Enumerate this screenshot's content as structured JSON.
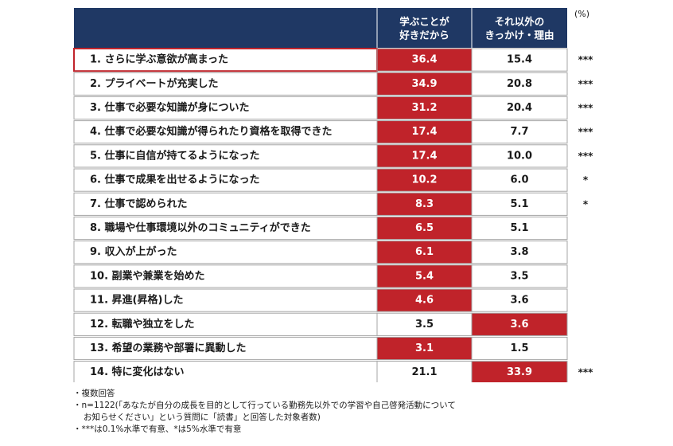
{
  "chart_data": {
    "type": "table",
    "unit_label": "(%)",
    "columns": [
      "学ぶことが\n好きだから",
      "それ以外の\nきっかけ・理由"
    ],
    "rows": [
      {
        "label": "1. さらに学ぶ意欲が高まった",
        "values": [
          36.4,
          15.4
        ],
        "highlight": 0,
        "sig": "***",
        "selected": true
      },
      {
        "label": "2. プライベートが充実した",
        "values": [
          34.9,
          20.8
        ],
        "highlight": 0,
        "sig": "***"
      },
      {
        "label": "3. 仕事で必要な知識が身についた",
        "values": [
          31.2,
          20.4
        ],
        "highlight": 0,
        "sig": "***"
      },
      {
        "label": "4. 仕事で必要な知識が得られたり資格を取得できた",
        "values": [
          17.4,
          7.7
        ],
        "highlight": 0,
        "sig": "***"
      },
      {
        "label": "5. 仕事に自信が持てるようになった",
        "values": [
          17.4,
          10.0
        ],
        "highlight": 0,
        "sig": "***"
      },
      {
        "label": "6. 仕事で成果を出せるようになった",
        "values": [
          10.2,
          6.0
        ],
        "highlight": 0,
        "sig": "*"
      },
      {
        "label": "7. 仕事で認められた",
        "values": [
          8.3,
          5.1
        ],
        "highlight": 0,
        "sig": "*"
      },
      {
        "label": "8. 職場や仕事環境以外のコミュニティができた",
        "values": [
          6.5,
          5.1
        ],
        "highlight": 0,
        "sig": ""
      },
      {
        "label": "9. 収入が上がった",
        "values": [
          6.1,
          3.8
        ],
        "highlight": 0,
        "sig": ""
      },
      {
        "label": "10. 副業や兼業を始めた",
        "values": [
          5.4,
          3.5
        ],
        "highlight": 0,
        "sig": ""
      },
      {
        "label": "11. 昇進(昇格)した",
        "values": [
          4.6,
          3.6
        ],
        "highlight": 0,
        "sig": ""
      },
      {
        "label": "12. 転職や独立をした",
        "values": [
          3.5,
          3.6
        ],
        "highlight": 1,
        "sig": ""
      },
      {
        "label": "13. 希望の業務や部署に異動した",
        "values": [
          3.1,
          1.5
        ],
        "highlight": 0,
        "sig": ""
      },
      {
        "label": "14. 特に変化はない",
        "values": [
          21.1,
          33.9
        ],
        "highlight": 1,
        "sig": "***"
      }
    ],
    "colors": {
      "header_bg": "#1f3864",
      "header_text": "#ffffff",
      "highlight_bg": "#c0232a",
      "highlight_text": "#ffffff",
      "cell_text": "#1a1a1a",
      "border": "#a6a6a6",
      "selected_border": "#c0232a"
    }
  },
  "notes": [
    "・複数回答",
    "・n=1122(「あなたが自分の成長を目的として行っている勤務先以外での学習や自己啓発活動について",
    "お知らせください」という質問に「読書」と回答した対象者数)",
    "・***は0.1%水準で有意、*は5%水準で有意"
  ]
}
